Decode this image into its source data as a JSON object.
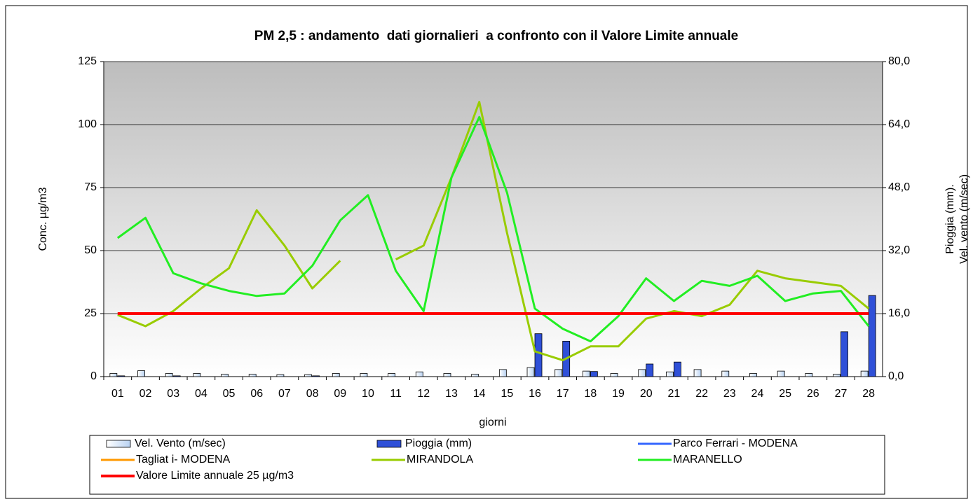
{
  "chart_data": {
    "type": "combo",
    "title": "PM 2,5 : andamento  dati giornalieri  a confronto con il Valore Limite annuale",
    "ylabel": "Conc. µg/m3",
    "y2label": [
      "Pioggia (mm).",
      "Vel. vento (m/sec)"
    ],
    "xlabel": "giorni",
    "categories": [
      "01",
      "02",
      "03",
      "04",
      "05",
      "06",
      "07",
      "08",
      "09",
      "10",
      "11",
      "12",
      "13",
      "14",
      "15",
      "16",
      "17",
      "18",
      "19",
      "20",
      "21",
      "22",
      "23",
      "24",
      "25",
      "26",
      "27",
      "28"
    ],
    "ylim": [
      0,
      125
    ],
    "yticks": [
      0,
      25,
      50,
      75,
      100,
      125
    ],
    "y2lim": [
      0,
      80
    ],
    "y2ticks": [
      {
        "value": 0,
        "label": "0,0"
      },
      {
        "value": 16,
        "label": "16,0"
      },
      {
        "value": 32,
        "label": "32,0"
      },
      {
        "value": 48,
        "label": "48,0"
      },
      {
        "value": 64,
        "label": "64,0"
      },
      {
        "value": 80,
        "label": "80,0"
      }
    ],
    "grid": true,
    "series": [
      {
        "name": "Vel. Vento (m/sec)",
        "kind": "bar",
        "axis": "y2",
        "color": "#d6e6f8",
        "values": [
          0.8,
          1.5,
          0.8,
          0.8,
          0.6,
          0.6,
          0.5,
          0.5,
          0.8,
          0.8,
          0.8,
          1.2,
          0.8,
          0.6,
          1.8,
          2.3,
          1.8,
          1.4,
          0.8,
          1.8,
          1.2,
          1.8,
          1.4,
          0.8,
          1.4,
          0.8,
          0.6,
          1.4
        ]
      },
      {
        "name": "Pioggia (mm)",
        "kind": "bar",
        "axis": "y2",
        "color": "#2f50d8",
        "values": [
          0.2,
          0,
          0.2,
          0,
          0,
          0,
          0,
          0.2,
          0,
          0,
          0,
          0,
          0,
          0,
          0,
          10.9,
          9.0,
          1.3,
          0,
          3.2,
          3.7,
          0,
          0,
          0,
          0,
          0,
          11.4,
          20.6
        ]
      },
      {
        "name": "Parco Ferrari - MODENA",
        "kind": "line",
        "color": "#3366ff",
        "values": [
          null,
          null,
          null,
          null,
          null,
          null,
          null,
          null,
          null,
          null,
          null,
          null,
          null,
          null,
          null,
          null,
          null,
          null,
          null,
          null,
          null,
          null,
          null,
          null,
          null,
          null,
          null,
          null
        ]
      },
      {
        "name": "Tagliat i- MODENA",
        "kind": "line",
        "color": "#ff9900",
        "values": [
          null,
          null,
          null,
          null,
          null,
          null,
          null,
          null,
          null,
          null,
          null,
          null,
          null,
          null,
          null,
          null,
          null,
          null,
          null,
          null,
          null,
          null,
          null,
          null,
          null,
          null,
          null,
          null
        ]
      },
      {
        "name": "MIRANDOLA",
        "kind": "line",
        "color": "#99cc00",
        "values": [
          24.5,
          20,
          26,
          35,
          43,
          66,
          52,
          35,
          46,
          null,
          46.5,
          52,
          79,
          109,
          57,
          10,
          6.5,
          12,
          12,
          23,
          26,
          24,
          28.5,
          42,
          39,
          37.5,
          36,
          27
        ]
      },
      {
        "name": "MARANELLO",
        "kind": "line",
        "color": "#22ee22",
        "values": [
          55,
          63,
          41,
          37,
          34,
          32,
          33,
          44,
          62,
          72,
          42,
          26,
          79,
          103,
          73,
          27,
          19,
          14,
          24,
          39,
          30,
          38,
          36,
          40,
          30,
          33,
          34,
          20
        ]
      },
      {
        "name": "Valore Limite annuale 25 µg/m3",
        "kind": "line",
        "color": "#ff0000",
        "width": 4,
        "values": [
          25,
          25,
          25,
          25,
          25,
          25,
          25,
          25,
          25,
          25,
          25,
          25,
          25,
          25,
          25,
          25,
          25,
          25,
          25,
          25,
          25,
          25,
          25,
          25,
          25,
          25,
          25,
          25
        ]
      }
    ]
  }
}
